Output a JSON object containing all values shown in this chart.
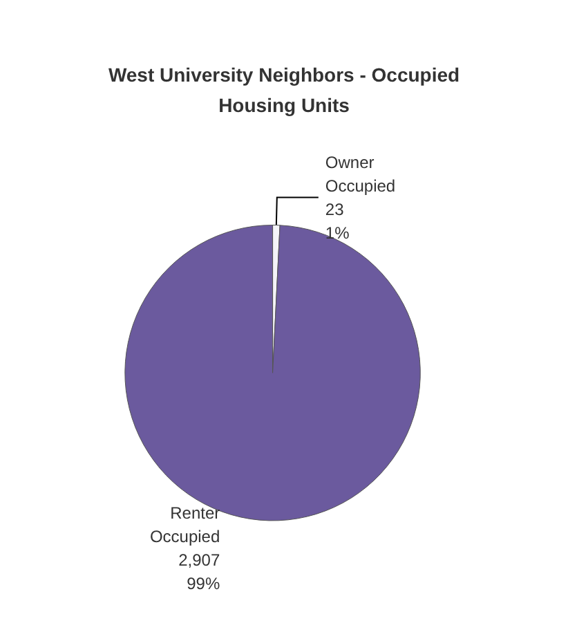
{
  "chart_data": {
    "type": "pie",
    "title": "West University Neighbors - Occupied\nHousing Units",
    "categories": [
      "Owner\nOccupied",
      "Renter\nOccupied"
    ],
    "values": [
      23,
      2907
    ],
    "colors": [
      "#f4f4f8",
      "#6b5a9e"
    ],
    "value_labels": [
      "23\n1%",
      "2,907\n99%"
    ]
  }
}
